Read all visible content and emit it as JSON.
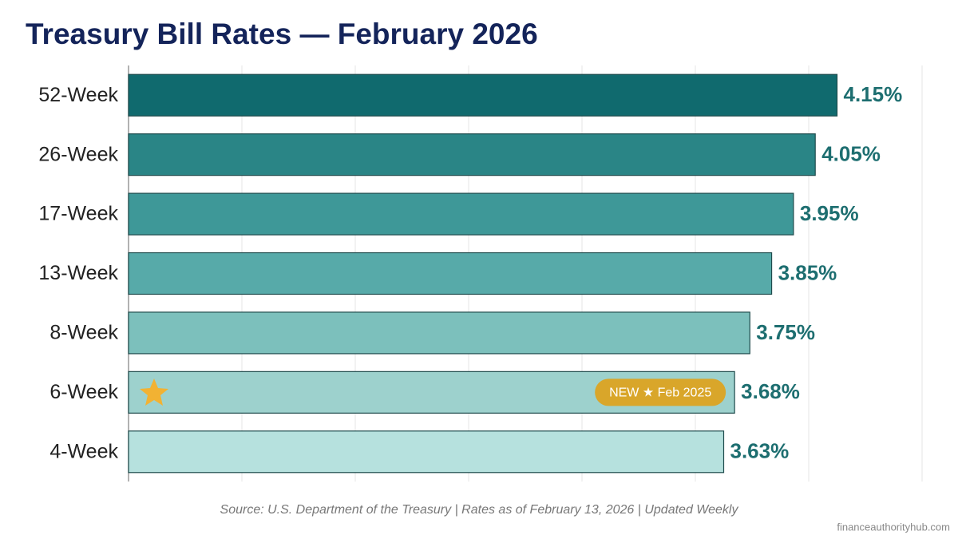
{
  "chart_data": {
    "type": "bar",
    "orientation": "horizontal",
    "title": "Treasury Bill Rates — February 2026",
    "categories": [
      "52-Week",
      "26-Week",
      "17-Week",
      "13-Week",
      "8-Week",
      "6-Week",
      "4-Week"
    ],
    "values": [
      4.15,
      4.05,
      3.95,
      3.85,
      3.75,
      3.68,
      3.63
    ],
    "value_labels": [
      "4.15%",
      "4.05%",
      "3.95%",
      "3.85%",
      "3.75%",
      "3.68%",
      "3.63%"
    ],
    "colors": [
      "#106a6e",
      "#2a8586",
      "#3e9898",
      "#57aaa9",
      "#7cc0bc",
      "#9dd1cd",
      "#b6e1de"
    ],
    "xlim": [
      0.9,
      4.54
    ],
    "xticks": [
      0.9,
      1.42,
      1.94,
      2.46,
      2.98,
      3.5,
      4.02,
      4.54
    ],
    "grid": true,
    "annotation": {
      "category": "6-Week",
      "text": "NEW ★ Feb 2025"
    },
    "source": "Source: U.S. Department of the Treasury | Rates as of February 13, 2026 | Updated Weekly",
    "watermark": "financeauthorityhub.com"
  }
}
